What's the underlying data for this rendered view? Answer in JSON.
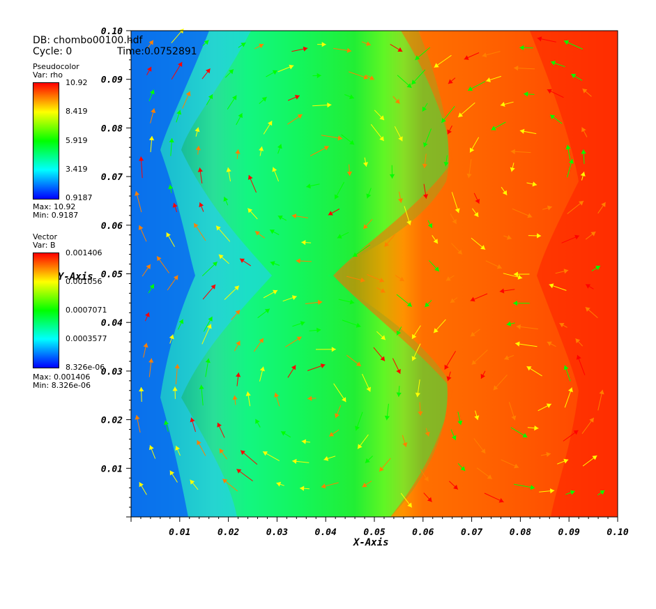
{
  "header": {
    "db_label": "DB: chombo00100.hdf",
    "cycle_label": "Cycle: 0",
    "time_label": "Time:0.0752891"
  },
  "pseudocolor_legend": {
    "title": "Pseudocolor",
    "var": "Var: rho",
    "ticks": [
      "10.92",
      "8.419",
      "5.919",
      "3.419",
      "0.9187"
    ],
    "max": "Max:  10.92",
    "min": "Min:  0.9187"
  },
  "vector_legend": {
    "title": "Vector",
    "var": "Var: B",
    "ticks": [
      "0.001406",
      "0.001056",
      "0.0007071",
      "0.0003577",
      "8.326e-06"
    ],
    "max": "Max:  0.001406",
    "min": "Min:  8.326e-06"
  },
  "colors": {
    "red": "#ff0000",
    "orange": "#ff8000",
    "yellow": "#ffff00",
    "green": "#00ff00",
    "cyan": "#00ffff",
    "blue": "#0000ff"
  },
  "chart_data": {
    "type": "heatmap",
    "title": "",
    "xlabel": "X-Axis",
    "ylabel": "Y-Axis",
    "xlim": [
      0.0,
      0.1
    ],
    "ylim": [
      0.0,
      0.1
    ],
    "x_tick_labels": [
      "0.01",
      "0.02",
      "0.03",
      "0.04",
      "0.05",
      "0.06",
      "0.07",
      "0.08",
      "0.09",
      "0.10"
    ],
    "y_tick_labels": [
      "0.01",
      "0.02",
      "0.03",
      "0.04",
      "0.05",
      "0.06",
      "0.07",
      "0.08",
      "0.09",
      "0.10"
    ],
    "colorbar_range": [
      0.9187,
      10.92
    ],
    "vector_range": [
      8.326e-06,
      0.001406
    ],
    "vector_field": "B",
    "scalar_field": "rho"
  }
}
